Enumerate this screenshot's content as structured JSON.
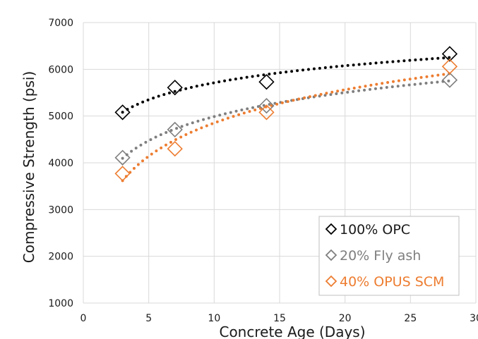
{
  "chart_data": {
    "type": "scatter",
    "title": "",
    "xlabel": "Concrete Age (Days)",
    "ylabel": "Compressive Strength (psi)",
    "xlim": [
      0,
      30
    ],
    "ylim": [
      1000,
      7000
    ],
    "xticks": [
      0,
      5,
      10,
      15,
      20,
      25,
      30
    ],
    "yticks": [
      1000,
      2000,
      3000,
      4000,
      5000,
      6000,
      7000
    ],
    "grid": true,
    "trendline": "logarithmic, dotted",
    "marker": "open diamond",
    "legend_position": "bottom-right",
    "series": [
      {
        "name": "100% OPC",
        "color": "#000000",
        "x": [
          3,
          7,
          14,
          28
        ],
        "y": [
          5080,
          5610,
          5730,
          6330
        ]
      },
      {
        "name": "20% Fly ash",
        "color": "#7f7f7f",
        "x": [
          3,
          7,
          14,
          28
        ],
        "y": [
          4110,
          4710,
          5220,
          5770
        ]
      },
      {
        "name": "40% OPUS SCM",
        "color": "#ed7d31",
        "x": [
          3,
          7,
          14,
          28
        ],
        "y": [
          3770,
          4300,
          5080,
          6060
        ]
      }
    ]
  }
}
